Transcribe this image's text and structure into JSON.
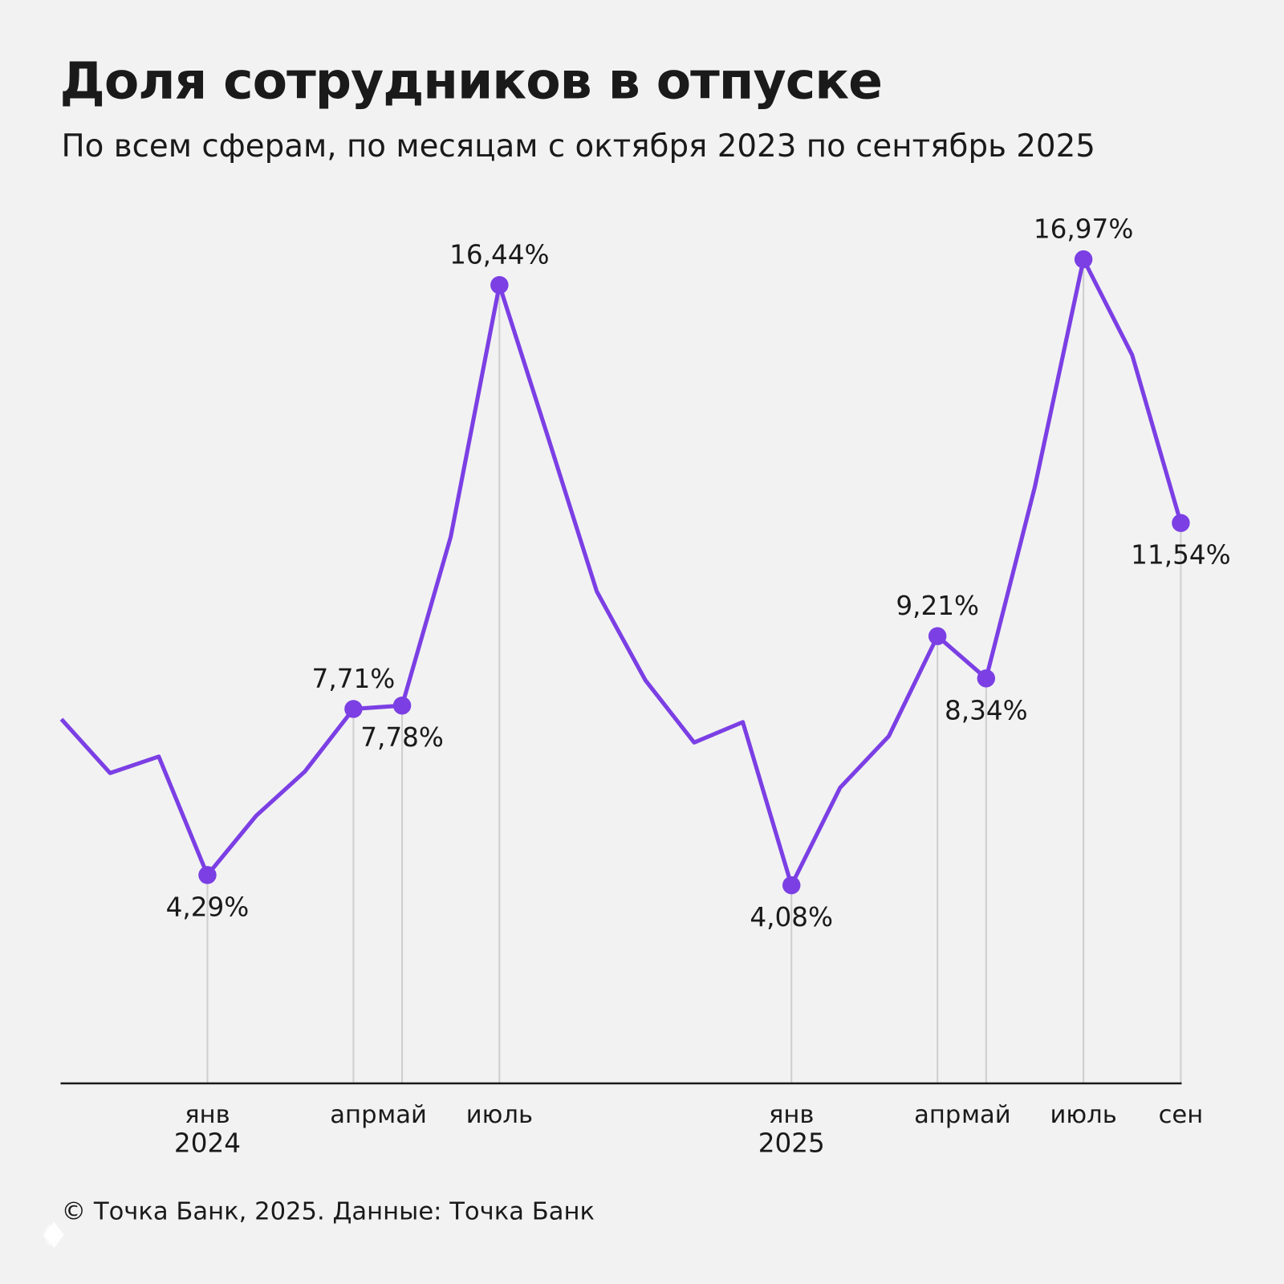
{
  "title": "Доля сотрудников в отпуске",
  "subtitle": "По всем сферам, по месяцам с октября 2023 по сентябрь 2025",
  "footer": "© Точка Банк, 2025. Данные: Точка Банк",
  "logo_text": "Точка",
  "colors": {
    "line": "#7b3fe4",
    "background": "#f2f2f2",
    "axis": "#1a1a1a",
    "guide": "#cfcfcf"
  },
  "chart_data": {
    "type": "line",
    "title": "Доля сотрудников в отпуске",
    "subtitle": "По всем сферам, по месяцам с октября 2023 по сентябрь 2025",
    "x": [
      "2023-10",
      "2023-11",
      "2023-12",
      "2024-01",
      "2024-02",
      "2024-03",
      "2024-04",
      "2024-05",
      "2024-06",
      "2024-07",
      "2024-08",
      "2024-09",
      "2024-10",
      "2024-11",
      "2024-12",
      "2025-01",
      "2025-02",
      "2025-03",
      "2025-04",
      "2025-05",
      "2025-06",
      "2025-07",
      "2025-08",
      "2025-09"
    ],
    "values": [
      7.5,
      6.39,
      6.73,
      4.29,
      5.51,
      6.42,
      7.71,
      7.78,
      11.26,
      16.44,
      13.3,
      10.13,
      8.3,
      7.02,
      7.44,
      4.08,
      6.09,
      7.15,
      9.21,
      8.34,
      12.28,
      16.97,
      15.0,
      11.54
    ],
    "ylim": [
      0,
      18
    ],
    "grid": false,
    "annotations": [
      {
        "index": 3,
        "label": "4,29%",
        "pos": "below"
      },
      {
        "index": 6,
        "label": "7,71%",
        "pos": "above"
      },
      {
        "index": 7,
        "label": "7,78%",
        "pos": "below"
      },
      {
        "index": 9,
        "label": "16,44%",
        "pos": "above"
      },
      {
        "index": 15,
        "label": "4,08%",
        "pos": "below"
      },
      {
        "index": 18,
        "label": "9,21%",
        "pos": "above"
      },
      {
        "index": 19,
        "label": "8,34%",
        "pos": "below"
      },
      {
        "index": 21,
        "label": "16,97%",
        "pos": "above"
      },
      {
        "index": 23,
        "label": "11,54%",
        "pos": "below"
      }
    ],
    "xticks": [
      {
        "index": 3,
        "label": "янв",
        "year": "2024"
      },
      {
        "index": 6,
        "label": "апр"
      },
      {
        "index": 7,
        "label": "май"
      },
      {
        "index": 9,
        "label": "июль"
      },
      {
        "index": 15,
        "label": "янв",
        "year": "2025"
      },
      {
        "index": 18,
        "label": "апр"
      },
      {
        "index": 19,
        "label": "май"
      },
      {
        "index": 21,
        "label": "июль"
      },
      {
        "index": 23,
        "label": "сен"
      }
    ]
  }
}
